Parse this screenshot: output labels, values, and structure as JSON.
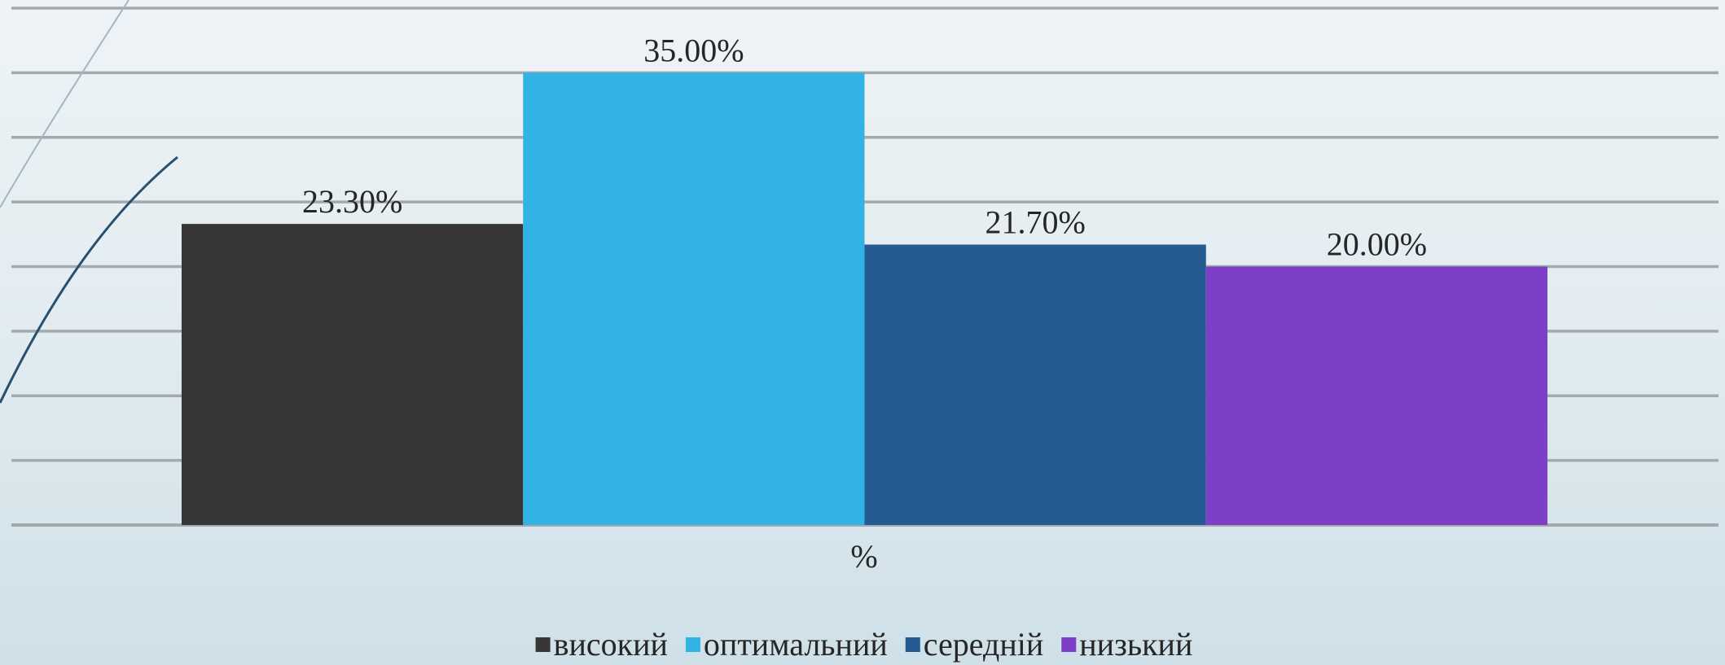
{
  "chart_data": {
    "type": "bar",
    "categories": [
      "%"
    ],
    "xlabel": "%",
    "ylim": [
      0,
      40
    ],
    "grid": true,
    "legend_position": "bottom",
    "series": [
      {
        "name": "високий",
        "values": [
          23.3
        ],
        "label": "23.30%",
        "color": "#363636"
      },
      {
        "name": "оптимальний",
        "values": [
          35.0
        ],
        "label": "35.00%",
        "color": "#31b3e4"
      },
      {
        "name": "середній",
        "values": [
          21.7
        ],
        "label": "21.70%",
        "color": "#265a92"
      },
      {
        "name": "низький",
        "values": [
          20.0
        ],
        "label": "20.00%",
        "color": "#7d3ec8"
      }
    ]
  },
  "colors": {
    "gridline": "#a3a9ad",
    "decor_curve_dark": "#27506e",
    "decor_curve_light": "#9fb7c6"
  }
}
